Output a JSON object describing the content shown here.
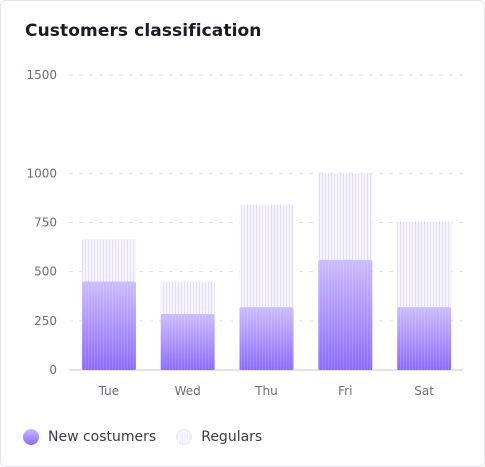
{
  "chart_data": {
    "type": "bar",
    "stacked": true,
    "title": "Customers classification",
    "categories": [
      "Tue",
      "Wed",
      "Thu",
      "Fri",
      "Sat"
    ],
    "series": [
      {
        "name": "New costumers",
        "values": [
          450,
          285,
          320,
          560,
          320
        ]
      },
      {
        "name": "Regulars",
        "values": [
          215,
          165,
          520,
          440,
          435
        ]
      }
    ],
    "ylim": [
      0,
      1500
    ],
    "yticks": [
      0,
      250,
      500,
      750,
      1000,
      1500
    ],
    "grid": true,
    "legend_position": "bottom-left"
  },
  "colors": {
    "new_top": "#cbbcff",
    "new_bottom": "#8d6bff",
    "regulars_fill": "#f3f1ff",
    "regulars_stripe": "#e6e1ff",
    "grid": "#e2e2e8",
    "axis": "#c8c8d0",
    "tick_text": "#6d6d7a"
  }
}
